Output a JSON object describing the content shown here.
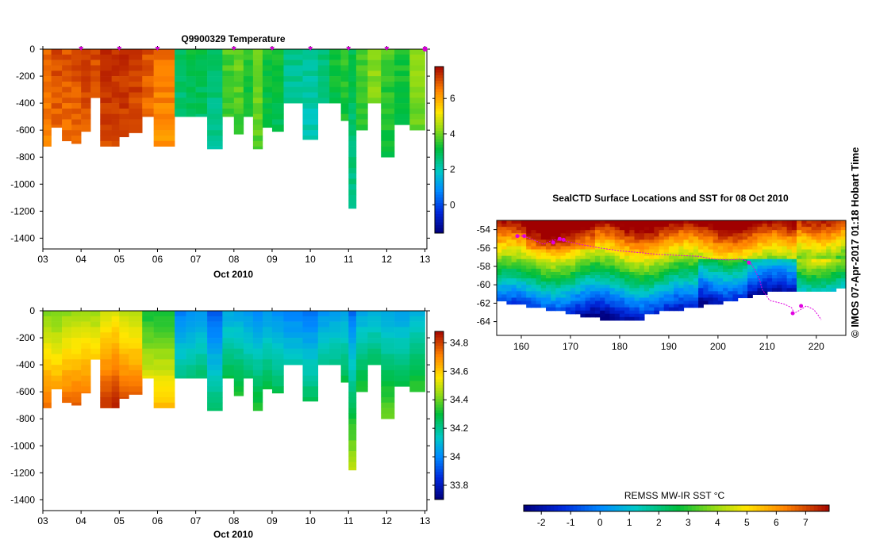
{
  "chart_data": [
    {
      "id": "temperature",
      "type": "heatmap",
      "title": "Q9900329  Temperature",
      "xlabel": "Oct 2010",
      "ylabel": "",
      "xlim": [
        3,
        13.05
      ],
      "ylim": [
        -1480,
        0
      ],
      "x_ticks": [
        "03",
        "04",
        "05",
        "06",
        "07",
        "08",
        "09",
        "10",
        "11",
        "12",
        "13"
      ],
      "y_ticks": [
        "0",
        "-200",
        "-400",
        "-600",
        "-800",
        "-1000",
        "-1200",
        "-1400"
      ],
      "profile_marks_day": [
        4,
        5,
        6,
        8,
        9,
        10,
        11,
        12,
        13
      ],
      "colorbar": {
        "min": -1.6,
        "max": 7.8,
        "ticks": [
          "0",
          "2",
          "4",
          "6"
        ],
        "tick_values": [
          0,
          2,
          4,
          6
        ]
      },
      "profiles": [
        {
          "day": 3.0,
          "end": 3.22,
          "max_depth": 720,
          "value": 6.8
        },
        {
          "day": 3.22,
          "end": 3.5,
          "max_depth": 580,
          "value": 7.0
        },
        {
          "day": 3.5,
          "end": 3.75,
          "max_depth": 680,
          "value": 6.9
        },
        {
          "day": 3.75,
          "end": 4.0,
          "max_depth": 700,
          "value": 7.0
        },
        {
          "day": 4.0,
          "end": 4.25,
          "max_depth": 610,
          "value": 7.2
        },
        {
          "day": 4.25,
          "end": 4.5,
          "max_depth": 360,
          "value": 7.0
        },
        {
          "day": 4.5,
          "end": 4.8,
          "max_depth": 720,
          "value": 7.4
        },
        {
          "day": 4.8,
          "end": 5.0,
          "max_depth": 720,
          "value": 7.3
        },
        {
          "day": 5.0,
          "end": 5.25,
          "max_depth": 650,
          "value": 7.4
        },
        {
          "day": 5.25,
          "end": 5.6,
          "max_depth": 620,
          "value": 7.3
        },
        {
          "day": 5.6,
          "end": 5.9,
          "max_depth": 500,
          "value": 6.9
        },
        {
          "day": 5.9,
          "end": 6.45,
          "max_depth": 720,
          "value": 6.6
        },
        {
          "day": 6.45,
          "end": 6.75,
          "max_depth": 500,
          "value": 2.8
        },
        {
          "day": 6.75,
          "end": 7.0,
          "max_depth": 500,
          "value": 3.0
        },
        {
          "day": 7.0,
          "end": 7.3,
          "max_depth": 500,
          "value": 3.0
        },
        {
          "day": 7.3,
          "end": 7.7,
          "max_depth": 740,
          "value": 2.7
        },
        {
          "day": 7.7,
          "end": 8.0,
          "max_depth": 500,
          "value": 3.7
        },
        {
          "day": 8.0,
          "end": 8.25,
          "max_depth": 630,
          "value": 3.9
        },
        {
          "day": 8.25,
          "end": 8.5,
          "max_depth": 500,
          "value": 3.4
        },
        {
          "day": 8.5,
          "end": 8.75,
          "max_depth": 740,
          "value": 4.1
        },
        {
          "day": 8.75,
          "end": 9.0,
          "max_depth": 580,
          "value": 3.3
        },
        {
          "day": 9.0,
          "end": 9.3,
          "max_depth": 610,
          "value": 3.2
        },
        {
          "day": 9.3,
          "end": 9.8,
          "max_depth": 400,
          "value": 2.4
        },
        {
          "day": 9.8,
          "end": 10.2,
          "max_depth": 670,
          "value": 2.3
        },
        {
          "day": 10.2,
          "end": 10.5,
          "max_depth": 400,
          "value": 2.6
        },
        {
          "day": 10.5,
          "end": 10.8,
          "max_depth": 400,
          "value": 3.3
        },
        {
          "day": 10.8,
          "end": 11.0,
          "max_depth": 530,
          "value": 3.5
        },
        {
          "day": 11.0,
          "end": 11.2,
          "max_depth": 1180,
          "value": 3.0
        },
        {
          "day": 11.2,
          "end": 11.5,
          "max_depth": 600,
          "value": 3.7
        },
        {
          "day": 11.5,
          "end": 11.85,
          "max_depth": 400,
          "value": 4.2
        },
        {
          "day": 11.85,
          "end": 12.2,
          "max_depth": 800,
          "value": 3.6
        },
        {
          "day": 12.2,
          "end": 12.6,
          "max_depth": 560,
          "value": 3.3
        },
        {
          "day": 12.6,
          "end": 13.0,
          "max_depth": 600,
          "value": 4.2
        }
      ]
    },
    {
      "id": "salinity",
      "type": "heatmap",
      "title": "",
      "xlabel": "Oct 2010",
      "ylabel": "",
      "xlim": [
        3,
        13.05
      ],
      "ylim": [
        -1480,
        0
      ],
      "x_ticks": [
        "03",
        "04",
        "05",
        "06",
        "07",
        "08",
        "09",
        "10",
        "11",
        "12",
        "13"
      ],
      "y_ticks": [
        "0",
        "-200",
        "-400",
        "-600",
        "-800",
        "-1000",
        "-1200",
        "-1400"
      ],
      "colorbar": {
        "min": 33.7,
        "max": 34.88,
        "ticks": [
          "33.8",
          "34",
          "34.2",
          "34.4",
          "34.6",
          "34.8"
        ],
        "tick_values": [
          33.8,
          34.0,
          34.2,
          34.4,
          34.6,
          34.8
        ]
      },
      "profiles": [
        {
          "day": 3.0,
          "end": 3.22,
          "max_depth": 720,
          "value": 34.42
        },
        {
          "day": 3.22,
          "end": 3.5,
          "max_depth": 580,
          "value": 34.4
        },
        {
          "day": 3.5,
          "end": 3.75,
          "max_depth": 680,
          "value": 34.43
        },
        {
          "day": 3.75,
          "end": 4.0,
          "max_depth": 700,
          "value": 34.44
        },
        {
          "day": 4.0,
          "end": 4.25,
          "max_depth": 610,
          "value": 34.45
        },
        {
          "day": 4.25,
          "end": 4.5,
          "max_depth": 360,
          "value": 34.44
        },
        {
          "day": 4.5,
          "end": 4.8,
          "max_depth": 720,
          "value": 34.5
        },
        {
          "day": 4.8,
          "end": 5.0,
          "max_depth": 720,
          "value": 34.52
        },
        {
          "day": 5.0,
          "end": 5.25,
          "max_depth": 650,
          "value": 34.48
        },
        {
          "day": 5.25,
          "end": 5.6,
          "max_depth": 620,
          "value": 34.47
        },
        {
          "day": 5.6,
          "end": 5.9,
          "max_depth": 500,
          "value": 34.3
        },
        {
          "day": 5.9,
          "end": 6.45,
          "max_depth": 720,
          "value": 34.3
        },
        {
          "day": 6.45,
          "end": 6.75,
          "max_depth": 500,
          "value": 33.98
        },
        {
          "day": 6.75,
          "end": 7.0,
          "max_depth": 500,
          "value": 34.0
        },
        {
          "day": 7.0,
          "end": 7.3,
          "max_depth": 500,
          "value": 34.02
        },
        {
          "day": 7.3,
          "end": 7.7,
          "max_depth": 740,
          "value": 33.92
        },
        {
          "day": 7.7,
          "end": 8.0,
          "max_depth": 500,
          "value": 34.06
        },
        {
          "day": 8.0,
          "end": 8.25,
          "max_depth": 630,
          "value": 34.05
        },
        {
          "day": 8.25,
          "end": 8.5,
          "max_depth": 500,
          "value": 34.02
        },
        {
          "day": 8.5,
          "end": 8.75,
          "max_depth": 740,
          "value": 34.0
        },
        {
          "day": 8.75,
          "end": 9.0,
          "max_depth": 580,
          "value": 34.03
        },
        {
          "day": 9.0,
          "end": 9.3,
          "max_depth": 610,
          "value": 34.0
        },
        {
          "day": 9.3,
          "end": 9.8,
          "max_depth": 400,
          "value": 33.98
        },
        {
          "day": 9.8,
          "end": 10.2,
          "max_depth": 670,
          "value": 33.96
        },
        {
          "day": 10.2,
          "end": 10.5,
          "max_depth": 400,
          "value": 34.02
        },
        {
          "day": 10.5,
          "end": 10.8,
          "max_depth": 400,
          "value": 34.04
        },
        {
          "day": 10.8,
          "end": 11.0,
          "max_depth": 530,
          "value": 34.05
        },
        {
          "day": 11.0,
          "end": 11.2,
          "max_depth": 1180,
          "value": 33.95
        },
        {
          "day": 11.2,
          "end": 11.5,
          "max_depth": 600,
          "value": 34.06
        },
        {
          "day": 11.5,
          "end": 11.85,
          "max_depth": 400,
          "value": 34.08
        },
        {
          "day": 11.85,
          "end": 12.2,
          "max_depth": 800,
          "value": 34.05
        },
        {
          "day": 12.2,
          "end": 12.6,
          "max_depth": 560,
          "value": 34.04
        },
        {
          "day": 12.6,
          "end": 13.0,
          "max_depth": 600,
          "value": 34.08
        }
      ]
    },
    {
      "id": "sst-map",
      "type": "heatmap",
      "title": "SealCTD Surface Locations and SST for 08 Oct 2010",
      "xlabel": "",
      "ylabel": "",
      "xlim": [
        155,
        226
      ],
      "ylim": [
        -65.5,
        -53
      ],
      "x_ticks": [
        "160",
        "170",
        "180",
        "190",
        "200",
        "210",
        "220"
      ],
      "x_tick_values": [
        160,
        170,
        180,
        190,
        200,
        210,
        220
      ],
      "y_ticks": [
        "-54",
        "-56",
        "-58",
        "-60",
        "-62",
        "-64"
      ],
      "y_tick_values": [
        -54,
        -56,
        -58,
        -60,
        -62,
        -64
      ],
      "colorbar": {
        "label": "REMSS MW-IR SST °C",
        "min": -2.6,
        "max": 7.8,
        "ticks": [
          "-2",
          "-1",
          "0",
          "1",
          "2",
          "3",
          "4",
          "5",
          "6",
          "7"
        ],
        "tick_values": [
          -2,
          -1,
          0,
          1,
          2,
          3,
          4,
          5,
          6,
          7
        ]
      },
      "track": {
        "lon": [
          158.8,
          160.5,
          162.5,
          164.5,
          166.5,
          168.5,
          172,
          176,
          180,
          184,
          188,
          192,
          196,
          199,
          202,
          204.5,
          206.5,
          207.5,
          208.5,
          209,
          210.5,
          212,
          213.5,
          215,
          215.5,
          216.5,
          218,
          219.5,
          220.5,
          221
        ],
        "lat": [
          -54.7,
          -54.7,
          -55.1,
          -55.6,
          -55.1,
          -55.2,
          -55.6,
          -56.0,
          -56.3,
          -56.5,
          -56.7,
          -56.8,
          -56.9,
          -57.2,
          -57.3,
          -57.2,
          -57.5,
          -58.4,
          -59.5,
          -60.5,
          -61.7,
          -61.9,
          -62.1,
          -62.5,
          -63.1,
          -62.8,
          -62.3,
          -62.7,
          -63.4,
          -63.8
        ]
      },
      "surface_locations": {
        "lon": [
          159.2,
          160.6,
          166.5,
          167.8,
          168.6,
          206.3,
          215.2,
          216.9
        ],
        "lat": [
          -54.7,
          -54.7,
          -55.4,
          -55.0,
          -55.1,
          -57.6,
          -63.1,
          -62.3
        ]
      }
    }
  ],
  "watermark": "© IMOS 07-Apr-2017 01:18 Hobart Time"
}
